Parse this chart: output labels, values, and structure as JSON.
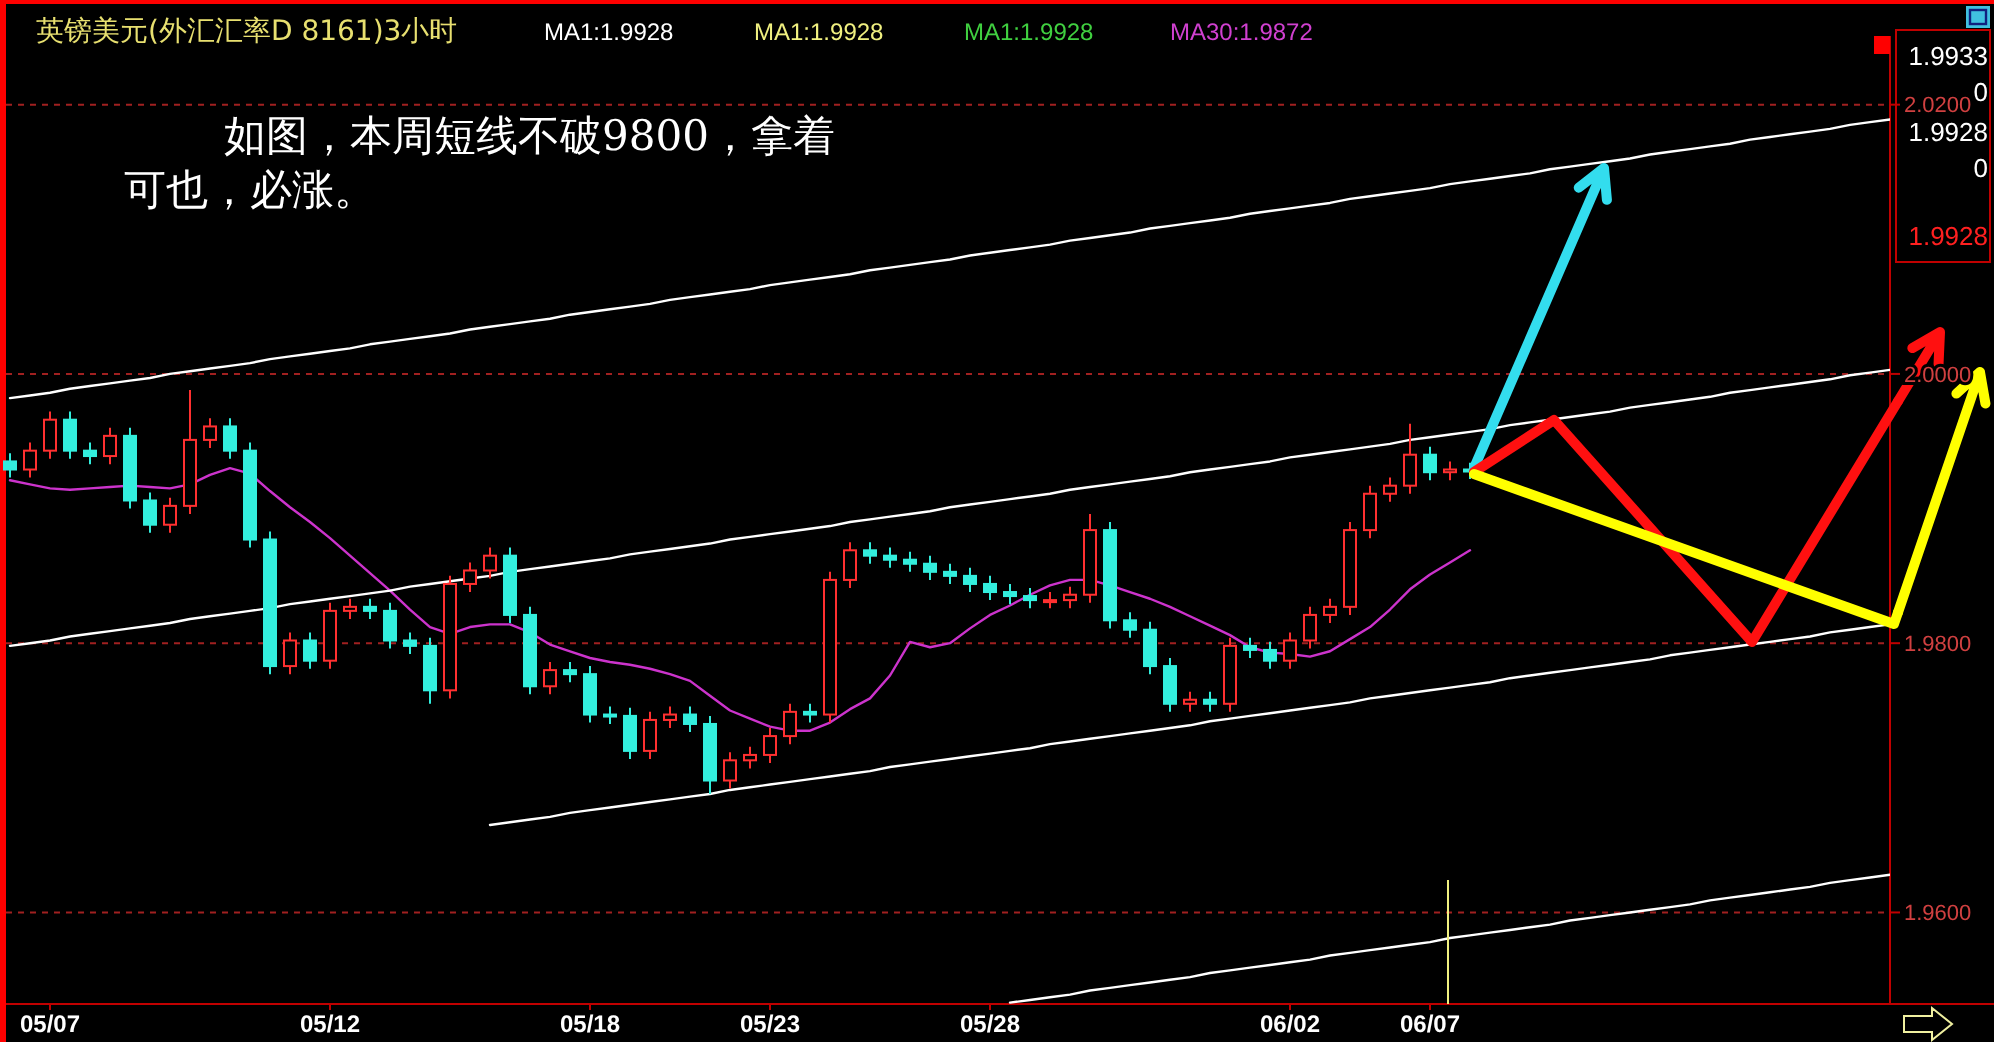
{
  "chart_data": {
    "type": "candlestick",
    "title": "英镑美元(外汇汇率D 8161)3小时",
    "annotations": [
      "MA1:1.9928",
      "MA1:1.9928",
      "MA1:1.9928",
      "MA30:1.9872",
      "如图，本周短线不破9800，拿着",
      "可也，必涨。",
      "1.9933",
      "0",
      "1.9928",
      "0",
      "1.9928"
    ],
    "categories": [
      null,
      null,
      "05/07",
      null,
      null,
      null,
      null,
      null,
      null,
      null,
      null,
      null,
      null,
      null,
      null,
      null,
      "05/12",
      null,
      null,
      null,
      null,
      null,
      null,
      null,
      null,
      null,
      null,
      null,
      null,
      "05/18",
      null,
      null,
      null,
      null,
      null,
      null,
      null,
      null,
      "05/23",
      null,
      null,
      null,
      null,
      null,
      null,
      null,
      null,
      null,
      null,
      "05/28",
      null,
      null,
      null,
      null,
      null,
      null,
      null,
      null,
      null,
      null,
      null,
      null,
      null,
      null,
      "06/02",
      null,
      null,
      null,
      null,
      null,
      null,
      "06/07",
      null,
      null,
      null,
      null,
      null,
      null,
      null,
      null,
      null,
      null,
      null,
      null,
      null,
      null,
      null,
      null,
      null,
      null,
      null,
      null,
      null,
      null,
      null
    ],
    "ohlc": [
      [
        1.9935,
        1.9941,
        1.9923,
        1.9929
      ],
      [
        1.9929,
        1.9949,
        1.9923,
        1.9943
      ],
      [
        1.9943,
        1.9972,
        1.9937,
        1.9966
      ],
      [
        1.9966,
        1.9972,
        1.9937,
        1.9943
      ],
      [
        1.9943,
        1.9949,
        1.9933,
        1.9939
      ],
      [
        1.9939,
        1.996,
        1.9933,
        1.9954
      ],
      [
        1.9954,
        1.996,
        1.99,
        1.9906
      ],
      [
        1.9906,
        1.9912,
        1.9882,
        1.9888
      ],
      [
        1.9888,
        1.9908,
        1.9882,
        1.9902
      ],
      [
        1.9902,
        1.9988,
        1.9896,
        1.9951
      ],
      [
        1.9951,
        1.9967,
        1.9945,
        1.9961
      ],
      [
        1.9961,
        1.9967,
        1.9937,
        1.9943
      ],
      [
        1.9943,
        1.9949,
        1.9871,
        1.9877
      ],
      [
        1.9877,
        1.9883,
        1.9777,
        1.9783
      ],
      [
        1.9783,
        1.9808,
        1.9777,
        1.9802
      ],
      [
        1.9802,
        1.9808,
        1.9781,
        1.9787
      ],
      [
        1.9787,
        1.983,
        1.9781,
        1.9824
      ],
      [
        1.9824,
        1.9833,
        1.9818,
        1.9827
      ],
      [
        1.9827,
        1.9833,
        1.9818,
        1.9824
      ],
      [
        1.9824,
        1.983,
        1.9796,
        1.9802
      ],
      [
        1.9802,
        1.9808,
        1.9792,
        1.9798
      ],
      [
        1.9798,
        1.9804,
        1.9755,
        1.9765
      ],
      [
        1.9765,
        1.985,
        1.9759,
        1.9844
      ],
      [
        1.9844,
        1.986,
        1.9838,
        1.9854
      ],
      [
        1.9854,
        1.9871,
        1.9848,
        1.9865
      ],
      [
        1.9865,
        1.9871,
        1.9815,
        1.9821
      ],
      [
        1.9821,
        1.9827,
        1.9762,
        1.9768
      ],
      [
        1.9768,
        1.9786,
        1.9762,
        1.978
      ],
      [
        1.978,
        1.9786,
        1.9771,
        1.9777
      ],
      [
        1.9777,
        1.9783,
        1.9741,
        1.9747
      ],
      [
        1.9747,
        1.9753,
        1.974,
        1.9746
      ],
      [
        1.9746,
        1.9752,
        1.9714,
        1.972
      ],
      [
        1.972,
        1.9749,
        1.9714,
        1.9743
      ],
      [
        1.9743,
        1.9753,
        1.9737,
        1.9747
      ],
      [
        1.9747,
        1.9753,
        1.9734,
        1.974
      ],
      [
        1.974,
        1.9746,
        1.9688,
        1.9698
      ],
      [
        1.9698,
        1.9719,
        1.9692,
        1.9713
      ],
      [
        1.9713,
        1.9723,
        1.9707,
        1.9717
      ],
      [
        1.9717,
        1.9737,
        1.9711,
        1.9731
      ],
      [
        1.9731,
        1.9755,
        1.9725,
        1.9749
      ],
      [
        1.9749,
        1.9755,
        1.9741,
        1.9747
      ],
      [
        1.9747,
        1.9853,
        1.9741,
        1.9847
      ],
      [
        1.9847,
        1.9875,
        1.9841,
        1.9869
      ],
      [
        1.9869,
        1.9875,
        1.9859,
        1.9865
      ],
      [
        1.9865,
        1.9871,
        1.9856,
        1.9862
      ],
      [
        1.9862,
        1.9868,
        1.9853,
        1.9859
      ],
      [
        1.9859,
        1.9865,
        1.9847,
        1.9853
      ],
      [
        1.9853,
        1.9859,
        1.9844,
        1.985
      ],
      [
        1.985,
        1.9856,
        1.9838,
        1.9844
      ],
      [
        1.9844,
        1.985,
        1.9832,
        1.9838
      ],
      [
        1.9838,
        1.9844,
        1.9829,
        1.9835
      ],
      [
        1.9835,
        1.9841,
        1.9826,
        1.9832
      ],
      [
        1.9832,
        1.9838,
        1.9826,
        1.9832
      ],
      [
        1.9832,
        1.9842,
        1.9826,
        1.9836
      ],
      [
        1.9836,
        1.9896,
        1.983,
        1.9884
      ],
      [
        1.9884,
        1.989,
        1.9811,
        1.9817
      ],
      [
        1.9817,
        1.9823,
        1.9804,
        1.981
      ],
      [
        1.981,
        1.9816,
        1.9777,
        1.9783
      ],
      [
        1.9783,
        1.9789,
        1.9749,
        1.9755
      ],
      [
        1.9755,
        1.9764,
        1.9749,
        1.9758
      ],
      [
        1.9758,
        1.9764,
        1.9749,
        1.9755
      ],
      [
        1.9755,
        1.9804,
        1.9749,
        1.9798
      ],
      [
        1.9798,
        1.9804,
        1.9789,
        1.9795
      ],
      [
        1.9795,
        1.9801,
        1.9781,
        1.9787
      ],
      [
        1.9787,
        1.9808,
        1.9781,
        1.9802
      ],
      [
        1.9802,
        1.9827,
        1.9796,
        1.9821
      ],
      [
        1.9821,
        1.9833,
        1.9815,
        1.9827
      ],
      [
        1.9827,
        1.989,
        1.9821,
        1.9884
      ],
      [
        1.9884,
        1.9917,
        1.9878,
        1.9911
      ],
      [
        1.9911,
        1.9923,
        1.9905,
        1.9917
      ],
      [
        1.9917,
        1.9963,
        1.9911,
        1.994
      ],
      [
        1.994,
        1.9946,
        1.9921,
        1.9927
      ],
      [
        1.9927,
        1.9935,
        1.9921,
        1.9929
      ],
      [
        1.9929,
        1.9934,
        1.9922,
        1.9928
      ],
      null,
      null,
      null,
      null,
      null,
      null,
      null,
      null,
      null,
      null,
      null,
      null,
      null,
      null,
      null,
      null,
      null,
      null,
      null,
      null,
      null
    ],
    "series": [
      {
        "type": "line",
        "color": "#cc33cc",
        "values": [
          1.9921,
          1.9918,
          1.9915,
          1.9914,
          1.9915,
          1.9916,
          1.9917,
          1.9916,
          1.9915,
          1.9918,
          1.9925,
          1.993,
          1.9926,
          1.9913,
          1.9901,
          1.989,
          1.9878,
          1.9865,
          1.9852,
          1.9839,
          1.9825,
          1.9812,
          1.9807,
          1.9812,
          1.9814,
          1.9814,
          1.9808,
          1.9799,
          1.9794,
          1.9789,
          1.9786,
          1.9784,
          1.9781,
          1.9777,
          1.9772,
          1.9761,
          1.975,
          1.9744,
          1.9738,
          1.9735,
          1.9735,
          1.9741,
          1.9751,
          1.9759,
          1.9776,
          1.9801,
          1.9797,
          1.98,
          1.9811,
          1.9821,
          1.9828,
          1.9836,
          1.9843,
          1.9847,
          1.9847,
          1.9843,
          1.9838,
          1.9833,
          1.9827,
          1.982,
          1.9813,
          1.9806,
          1.9797,
          1.9793,
          1.9792,
          1.979,
          1.9794,
          1.9803,
          1.9812,
          1.9825,
          1.984,
          1.9851,
          1.986,
          1.9869,
          null,
          null,
          null,
          null,
          null,
          null,
          null,
          null,
          null,
          null,
          null,
          null,
          null,
          null,
          null,
          null,
          null,
          null,
          null,
          null,
          null
        ]
      },
      {
        "type": "line",
        "color": "#ffffff",
        "values": [
          1.9982,
          1.9984,
          1.9986,
          1.9989,
          1.9991,
          1.9993,
          1.9995,
          1.9997,
          2.0,
          2.0002,
          2.0004,
          2.0006,
          2.0008,
          2.0011,
          2.0013,
          2.0015,
          2.0017,
          2.0019,
          2.0022,
          2.0024,
          2.0026,
          2.0028,
          2.003,
          2.0033,
          2.0035,
          2.0037,
          2.0039,
          2.0041,
          2.0044,
          2.0046,
          2.0048,
          2.005,
          2.0052,
          2.0055,
          2.0057,
          2.0059,
          2.0061,
          2.0063,
          2.0066,
          2.0068,
          2.007,
          2.0072,
          2.0074,
          2.0077,
          2.0079,
          2.0081,
          2.0083,
          2.0085,
          2.0088,
          2.009,
          2.0092,
          2.0094,
          2.0096,
          2.0099,
          2.0101,
          2.0103,
          2.0105,
          2.0108,
          2.011,
          2.0112,
          2.0114,
          2.0116,
          2.0119,
          2.0121,
          2.0123,
          2.0125,
          2.0127,
          2.013,
          2.0132,
          2.0134,
          2.0136,
          2.0138,
          2.0141,
          2.0143,
          2.0145,
          2.0147,
          2.0149,
          2.0152,
          2.0154,
          2.0156,
          2.0158,
          2.016,
          2.0163,
          2.0165,
          2.0167,
          2.0169,
          2.0171,
          2.0174,
          2.0176,
          2.0178,
          2.018,
          2.0182,
          2.0185,
          2.0187,
          2.0189
        ]
      },
      {
        "type": "line",
        "color": "#ffffff",
        "values": [
          1.9798,
          1.98,
          1.9802,
          1.9805,
          1.9807,
          1.9809,
          1.9811,
          1.9813,
          1.9815,
          1.9818,
          1.982,
          1.9822,
          1.9824,
          1.9826,
          1.9829,
          1.9831,
          1.9833,
          1.9835,
          1.9837,
          1.9839,
          1.9842,
          1.9844,
          1.9846,
          1.9848,
          1.985,
          1.9853,
          1.9855,
          1.9857,
          1.9859,
          1.9861,
          1.9863,
          1.9866,
          1.9868,
          1.987,
          1.9872,
          1.9874,
          1.9877,
          1.9879,
          1.9881,
          1.9883,
          1.9885,
          1.9887,
          1.989,
          1.9892,
          1.9894,
          1.9896,
          1.9898,
          1.9901,
          1.9903,
          1.9905,
          1.9907,
          1.9909,
          1.9911,
          1.9914,
          1.9916,
          1.9918,
          1.992,
          1.9922,
          1.9924,
          1.9927,
          1.9929,
          1.9931,
          1.9933,
          1.9935,
          1.9938,
          1.994,
          1.9942,
          1.9944,
          1.9946,
          1.9948,
          1.9951,
          1.9953,
          1.9955,
          1.9957,
          1.9959,
          1.9962,
          1.9964,
          1.9966,
          1.9968,
          1.997,
          1.9972,
          1.9975,
          1.9977,
          1.9979,
          1.9981,
          1.9983,
          1.9986,
          1.9988,
          1.999,
          1.9992,
          1.9994,
          1.9996,
          1.9999,
          2.0001,
          2.0003
        ]
      },
      {
        "type": "line",
        "color": "#ffffff",
        "values": [
          null,
          null,
          null,
          null,
          null,
          null,
          null,
          null,
          null,
          null,
          null,
          null,
          null,
          null,
          null,
          null,
          null,
          null,
          null,
          null,
          null,
          null,
          null,
          null,
          1.9665,
          1.9667,
          1.9669,
          1.9671,
          1.9674,
          1.9676,
          1.9678,
          1.968,
          1.9682,
          1.9684,
          1.9686,
          1.9688,
          1.9691,
          1.9693,
          1.9695,
          1.9697,
          1.9699,
          1.9701,
          1.9703,
          1.9705,
          1.9708,
          1.971,
          1.9712,
          1.9714,
          1.9716,
          1.9718,
          1.972,
          1.9722,
          1.9725,
          1.9727,
          1.9729,
          1.9731,
          1.9733,
          1.9735,
          1.9737,
          1.9739,
          1.9742,
          1.9744,
          1.9746,
          1.9748,
          1.975,
          1.9752,
          1.9754,
          1.9756,
          1.9759,
          1.9761,
          1.9763,
          1.9765,
          1.9767,
          1.9769,
          1.9771,
          1.9774,
          1.9776,
          1.9778,
          1.978,
          1.9782,
          1.9784,
          1.9786,
          1.9788,
          1.9791,
          1.9793,
          1.9795,
          1.9797,
          1.9799,
          1.9801,
          1.9803,
          1.9805,
          1.9808,
          1.981,
          1.9812,
          1.9814
        ]
      },
      {
        "type": "line",
        "color": "#ffffff",
        "values": [
          null,
          null,
          null,
          null,
          null,
          null,
          null,
          null,
          null,
          null,
          null,
          null,
          null,
          null,
          null,
          null,
          null,
          null,
          null,
          null,
          null,
          null,
          null,
          null,
          null,
          null,
          null,
          null,
          null,
          null,
          null,
          null,
          null,
          null,
          null,
          null,
          null,
          null,
          null,
          null,
          null,
          null,
          null,
          null,
          null,
          null,
          null,
          null,
          null,
          null,
          1.9533,
          1.9535,
          1.9537,
          1.9539,
          1.9542,
          1.9544,
          1.9546,
          1.9548,
          1.955,
          1.9552,
          1.9555,
          1.9557,
          1.9559,
          1.9561,
          1.9563,
          1.9565,
          1.9568,
          1.957,
          1.9572,
          1.9574,
          1.9576,
          1.9578,
          1.9581,
          1.9583,
          1.9585,
          1.9587,
          1.9589,
          1.9591,
          1.9594,
          1.9596,
          1.9598,
          1.96,
          1.9602,
          1.9604,
          1.9606,
          1.9609,
          1.9611,
          1.9613,
          1.9615,
          1.9617,
          1.9619,
          1.9622,
          1.9624,
          1.9626,
          1.9628
        ]
      }
    ],
    "ylim": [
      1.9532,
      2.0251
    ],
    "yticks": [
      {
        "value": 1.96,
        "label": "1.9600"
      },
      {
        "value": 1.98,
        "label": "1.9800"
      },
      {
        "value": 2.0,
        "label": "2.0000"
      },
      {
        "value": 2.02,
        "label": "2.0200"
      }
    ],
    "grid": "y"
  }
}
